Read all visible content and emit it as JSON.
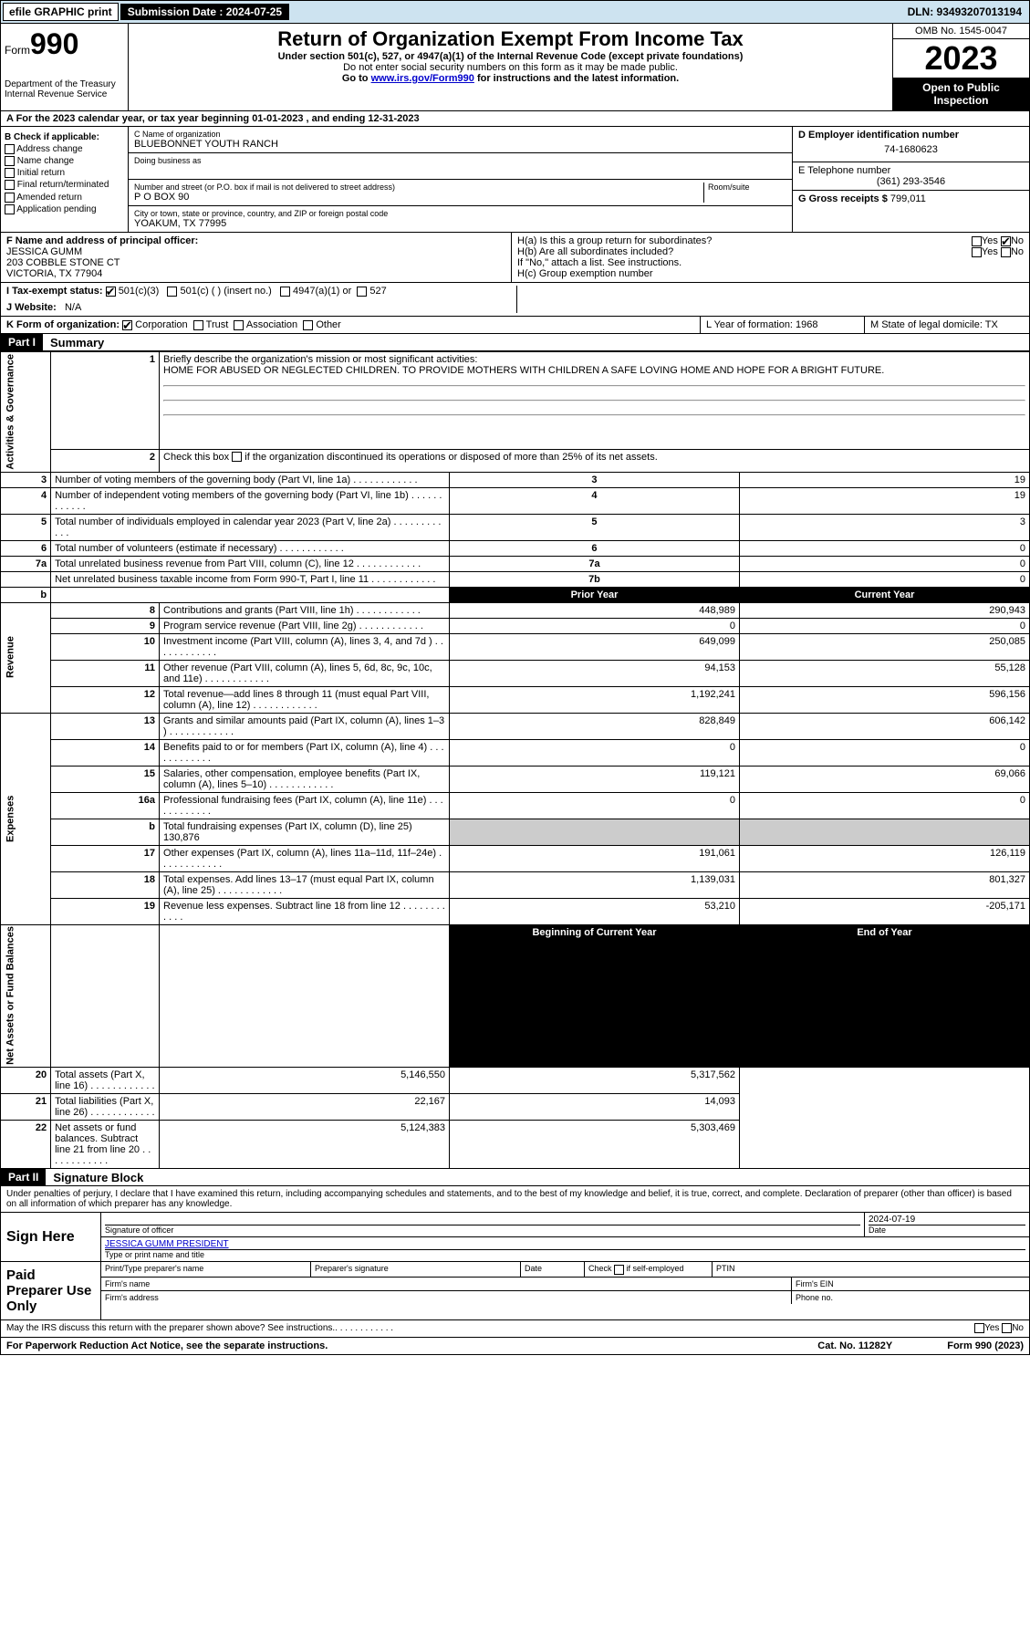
{
  "topbar": {
    "efile": "efile GRAPHIC print",
    "sub_label": "Submission Date : 2024-07-25",
    "dln": "DLN: 93493207013194"
  },
  "header": {
    "form_word": "Form",
    "form_num": "990",
    "title": "Return of Organization Exempt From Income Tax",
    "subtitle": "Under section 501(c), 527, or 4947(a)(1) of the Internal Revenue Code (except private foundations)",
    "warn": "Do not enter social security numbers on this form as it may be made public.",
    "goto_pre": "Go to ",
    "goto_link": "www.irs.gov/Form990",
    "goto_post": " for instructions and the latest information.",
    "dept": "Department of the Treasury\nInternal Revenue Service",
    "omb": "OMB No. 1545-0047",
    "year": "2023",
    "inspect": "Open to Public Inspection"
  },
  "rowA": "A  For the 2023 calendar year, or tax year beginning 01-01-2023    , and ending 12-31-2023",
  "colB": {
    "label": "B Check if applicable:",
    "items": [
      "Address change",
      "Name change",
      "Initial return",
      "Final return/terminated",
      "Amended return",
      "Application pending"
    ]
  },
  "boxC": {
    "label": "C Name of organization",
    "name": "BLUEBONNET YOUTH RANCH",
    "dba_label": "Doing business as",
    "street_label": "Number and street (or P.O. box if mail is not delivered to street address)",
    "room_label": "Room/suite",
    "street": "P O BOX 90",
    "city_label": "City or town, state or province, country, and ZIP or foreign postal code",
    "city": "YOAKUM, TX  77995"
  },
  "boxD": {
    "label": "D Employer identification number",
    "val": "74-1680623"
  },
  "boxE": {
    "label": "E Telephone number",
    "val": "(361) 293-3546"
  },
  "boxG": {
    "label": "G Gross receipts $",
    "val": "799,011"
  },
  "boxF": {
    "label": "F  Name and address of principal officer:",
    "name": "JESSICA GUMM",
    "addr1": "203 COBBLE STONE CT",
    "addr2": "VICTORIA, TX  77904"
  },
  "boxH": {
    "ha": "H(a)  Is this a group return for subordinates?",
    "hb": "H(b)  Are all subordinates included?",
    "hb_note": "If \"No,\" attach a list. See instructions.",
    "hc": "H(c)  Group exemption number",
    "yes": "Yes",
    "no": "No"
  },
  "rowI": {
    "label": "I   Tax-exempt status:",
    "opts": [
      "501(c)(3)",
      "501(c) (  ) (insert no.)",
      "4947(a)(1) or",
      "527"
    ]
  },
  "rowJ": {
    "label": "J   Website:",
    "val": "N/A"
  },
  "rowK": {
    "label": "K Form of organization:",
    "opts": [
      "Corporation",
      "Trust",
      "Association",
      "Other"
    ],
    "L": "L Year of formation: 1968",
    "M": "M State of legal domicile: TX"
  },
  "parts": {
    "p1": "Part I",
    "p1_title": "Summary",
    "p2": "Part II",
    "p2_title": "Signature Block"
  },
  "vlabels": {
    "ag": "Activities & Governance",
    "rev": "Revenue",
    "exp": "Expenses",
    "na": "Net Assets or\nFund Balances"
  },
  "summary": {
    "l1_label": "Briefly describe the organization's mission or most significant activities:",
    "l1_text": "HOME FOR ABUSED OR NEGLECTED CHILDREN. TO PROVIDE MOTHERS WITH CHILDREN A SAFE LOVING HOME AND HOPE FOR A BRIGHT FUTURE.",
    "l2": "Check this box      if the organization discontinued its operations or disposed of more than 25% of its net assets.",
    "rows_ag": [
      {
        "n": "3",
        "d": "Number of voting members of the governing body (Part VI, line 1a)",
        "k": "3",
        "v": "19"
      },
      {
        "n": "4",
        "d": "Number of independent voting members of the governing body (Part VI, line 1b)",
        "k": "4",
        "v": "19"
      },
      {
        "n": "5",
        "d": "Total number of individuals employed in calendar year 2023 (Part V, line 2a)",
        "k": "5",
        "v": "3"
      },
      {
        "n": "6",
        "d": "Total number of volunteers (estimate if necessary)",
        "k": "6",
        "v": "0"
      },
      {
        "n": "7a",
        "d": "Total unrelated business revenue from Part VIII, column (C), line 12",
        "k": "7a",
        "v": "0"
      },
      {
        "n": "",
        "d": "Net unrelated business taxable income from Form 990-T, Part I, line 11",
        "k": "7b",
        "v": "0"
      }
    ],
    "col_hdr_prior": "Prior Year",
    "col_hdr_curr": "Current Year",
    "rows_rev": [
      {
        "n": "8",
        "d": "Contributions and grants (Part VIII, line 1h)",
        "p": "448,989",
        "c": "290,943"
      },
      {
        "n": "9",
        "d": "Program service revenue (Part VIII, line 2g)",
        "p": "0",
        "c": "0"
      },
      {
        "n": "10",
        "d": "Investment income (Part VIII, column (A), lines 3, 4, and 7d )",
        "p": "649,099",
        "c": "250,085"
      },
      {
        "n": "11",
        "d": "Other revenue (Part VIII, column (A), lines 5, 6d, 8c, 9c, 10c, and 11e)",
        "p": "94,153",
        "c": "55,128"
      },
      {
        "n": "12",
        "d": "Total revenue—add lines 8 through 11 (must equal Part VIII, column (A), line 12)",
        "p": "1,192,241",
        "c": "596,156"
      }
    ],
    "rows_exp": [
      {
        "n": "13",
        "d": "Grants and similar amounts paid (Part IX, column (A), lines 1–3 )",
        "p": "828,849",
        "c": "606,142"
      },
      {
        "n": "14",
        "d": "Benefits paid to or for members (Part IX, column (A), line 4)",
        "p": "0",
        "c": "0"
      },
      {
        "n": "15",
        "d": "Salaries, other compensation, employee benefits (Part IX, column (A), lines 5–10)",
        "p": "119,121",
        "c": "69,066"
      },
      {
        "n": "16a",
        "d": "Professional fundraising fees (Part IX, column (A), line 11e)",
        "p": "0",
        "c": "0"
      },
      {
        "n": "b",
        "d": "Total fundraising expenses (Part IX, column (D), line 25) 130,876",
        "shade": true
      },
      {
        "n": "17",
        "d": "Other expenses (Part IX, column (A), lines 11a–11d, 11f–24e)",
        "p": "191,061",
        "c": "126,119"
      },
      {
        "n": "18",
        "d": "Total expenses. Add lines 13–17 (must equal Part IX, column (A), line 25)",
        "p": "1,139,031",
        "c": "801,327"
      },
      {
        "n": "19",
        "d": "Revenue less expenses. Subtract line 18 from line 12",
        "p": "53,210",
        "c": "-205,171"
      }
    ],
    "col_hdr_beg": "Beginning of Current Year",
    "col_hdr_end": "End of Year",
    "rows_na": [
      {
        "n": "20",
        "d": "Total assets (Part X, line 16)",
        "p": "5,146,550",
        "c": "5,317,562"
      },
      {
        "n": "21",
        "d": "Total liabilities (Part X, line 26)",
        "p": "22,167",
        "c": "14,093"
      },
      {
        "n": "22",
        "d": "Net assets or fund balances. Subtract line 21 from line 20",
        "p": "5,124,383",
        "c": "5,303,469"
      }
    ]
  },
  "declare": "Under penalties of perjury, I declare that I have examined this return, including accompanying schedules and statements, and to the best of my knowledge and belief, it is true, correct, and complete. Declaration of preparer (other than officer) is based on all information of which preparer has any knowledge.",
  "sign": {
    "here": "Sign Here",
    "sig_officer": "Signature of officer",
    "date": "2024-07-19",
    "date_label": "Date",
    "name_title": "JESSICA GUMM  PRESIDENT",
    "name_label": "Type or print name and title",
    "paid": "Paid Preparer Use Only",
    "prep_name": "Print/Type preparer's name",
    "prep_sig": "Preparer's signature",
    "prep_date": "Date",
    "check_self": "Check        if self-employed",
    "ptin": "PTIN",
    "firm_name": "Firm's name",
    "firm_ein": "Firm's EIN",
    "firm_addr": "Firm's address",
    "phone": "Phone no."
  },
  "discuss": "May the IRS discuss this return with the preparer shown above? See instructions.",
  "footer": {
    "pra": "For Paperwork Reduction Act Notice, see the separate instructions.",
    "cat": "Cat. No. 11282Y",
    "form": "Form 990 (2023)"
  }
}
